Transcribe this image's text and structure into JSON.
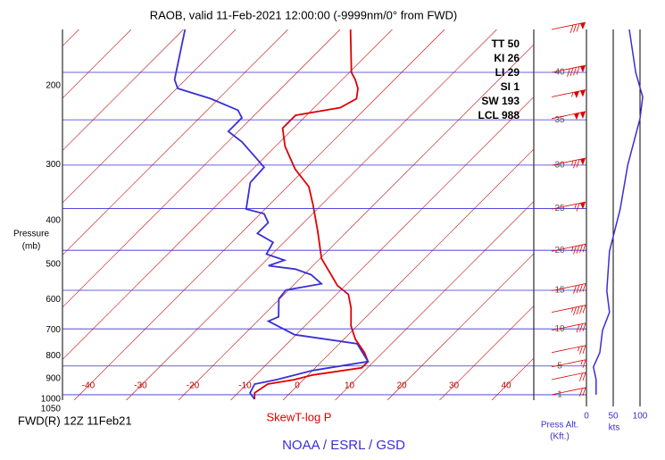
{
  "chart_data": {
    "type": "skewt",
    "title": "RAOB, valid 11-Feb-2021 12:00:00 (-9999nm/0° from FWD)",
    "y_label_lines": [
      "Pressure",
      "(mb)"
    ],
    "log_y": true,
    "ylim": [
      1000,
      150
    ],
    "yticks": [
      200,
      300,
      400,
      500,
      600,
      700,
      800,
      900,
      1000,
      1050
    ],
    "xticks": [
      -40,
      -30,
      -20,
      -10,
      0,
      10,
      20,
      30,
      40
    ],
    "x_label": "SkewT-log P",
    "isotherm_color": "#c00000",
    "series": [
      {
        "color": "#e00000",
        "pressure": [
          150,
          187,
          194,
          203,
          214,
          224,
          233,
          249,
          273,
          307,
          336,
          369,
          423,
          486,
          533,
          558,
          584,
          626,
          686,
          735,
          787,
          824,
          851,
          883,
          904,
          925,
          968,
          1000
        ],
        "values": [
          -58,
          -49.6,
          -47.5,
          -45.3,
          -43.6,
          -45,
          -52.1,
          -52.1,
          -48.2,
          -41.9,
          -35.9,
          -31.6,
          -25.6,
          -19.7,
          -14.2,
          -11.5,
          -7.7,
          -4.6,
          -1.2,
          2.2,
          6.5,
          8.9,
          8.9,
          0.9,
          -1.7,
          -6,
          -6.8,
          -5.6
        ]
      },
      {
        "color": "#3a2fd6",
        "pressure": [
          150,
          194,
          203,
          214,
          227,
          236,
          253,
          267,
          304,
          329,
          377,
          386,
          404,
          427,
          447,
          475,
          490,
          504,
          513,
          528,
          553,
          571,
          597,
          655,
          670,
          718,
          752,
          824,
          863,
          904,
          925,
          968,
          1000
        ],
        "values": [
          -89.7,
          -82.1,
          -79.8,
          -71.5,
          -64.1,
          -61.9,
          -61.9,
          -57.3,
          -48.2,
          -47.9,
          -43.6,
          -39.3,
          -36.8,
          -36.8,
          -32.1,
          -31.1,
          -26.5,
          -28.5,
          -22.7,
          -18.6,
          -14.9,
          -20.5,
          -20.2,
          -16.8,
          -17.9,
          -10.3,
          3.4,
          8.9,
          0,
          -5.1,
          -8.5,
          -7.7,
          -5.6
        ]
      }
    ],
    "indices": [
      "TT 50",
      "KI 26",
      "LI 29",
      "SI 1",
      "SW 193",
      "LCL 988"
    ],
    "altitude_axis": {
      "label_lines": [
        "Press Alt.",
        "(Kft.)"
      ],
      "ticks": [
        1,
        5,
        10,
        15,
        20,
        25,
        30,
        35,
        40
      ],
      "color": "#3a2fd6"
    },
    "wind": {
      "color": "#3a2fd6",
      "barb_color": "#e00000",
      "pressure": [
        150,
        187,
        212,
        237,
        301,
        377,
        468,
        573,
        640,
        702,
        787,
        847,
        904,
        977
      ],
      "speed": [
        80,
        92,
        105,
        100,
        77,
        63,
        43,
        38,
        43,
        30,
        25,
        13,
        18,
        18
      ],
      "xlim": [
        0,
        100
      ],
      "xticks": [
        0,
        50,
        100
      ],
      "x_label": "kts"
    },
    "footer_left": "FWD(R) 12Z 11Feb21",
    "credit": "NOAA / ESRL / GSD"
  }
}
